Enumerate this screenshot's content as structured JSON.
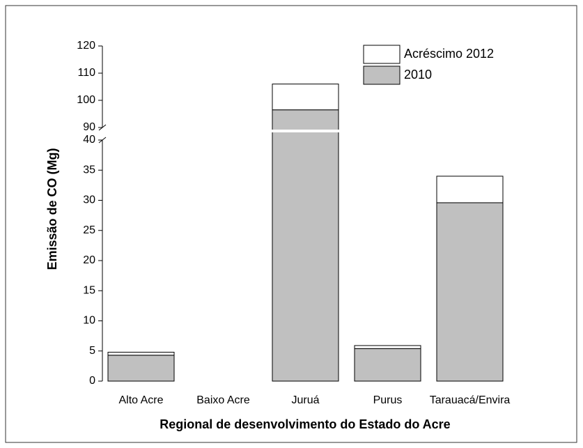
{
  "chart_data": {
    "type": "stacked_bar",
    "xlabel": "Regional de desenvolvimento do Estado do Acre",
    "ylabel": "Emissão de CO (Mg)",
    "categories": [
      "Alto Acre",
      "Baixo Acre",
      "Juruá",
      "Purus",
      "Tarauacá/Envira"
    ],
    "series": [
      {
        "name": "2010",
        "color": "#c0c0c0",
        "values": [
          4.3,
          0,
          96.5,
          5.4,
          29.6
        ]
      },
      {
        "name": "Acréscimo 2012",
        "color": "#ffffff",
        "values": [
          0.5,
          0,
          9.5,
          0.5,
          4.4
        ]
      }
    ],
    "ylim_segments": [
      [
        0,
        40
      ],
      [
        90,
        120
      ]
    ],
    "yticks": [
      0,
      5,
      10,
      15,
      20,
      25,
      30,
      35,
      40,
      90,
      100,
      110,
      120
    ],
    "axis_break": true,
    "grid": false
  }
}
